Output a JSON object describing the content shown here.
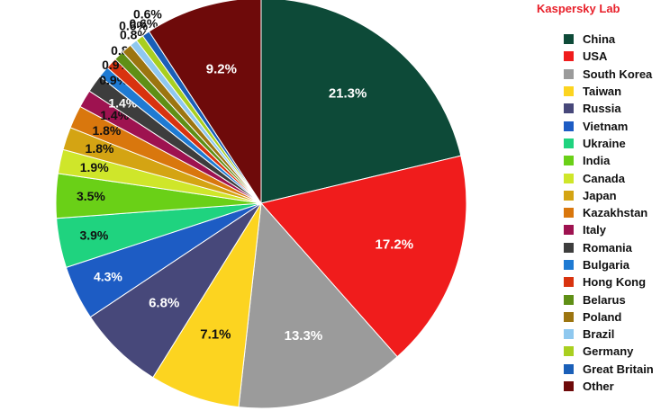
{
  "brand": "Kaspersky Lab",
  "chart_data": {
    "type": "pie",
    "title": "",
    "slices": [
      {
        "label": "China",
        "value": 21.3,
        "color": "#0d4a38",
        "label_text": "21.3%",
        "label_color": "#ffffff"
      },
      {
        "label": "USA",
        "value": 17.2,
        "color": "#f01c1c",
        "label_text": "17.2%",
        "label_color": "#ffffff"
      },
      {
        "label": "South Korea",
        "value": 13.3,
        "color": "#9b9b9b",
        "label_text": "13.3%",
        "label_color": "#ffffff"
      },
      {
        "label": "Taiwan",
        "value": 7.1,
        "color": "#fcd420",
        "label_text": "7.1%",
        "label_color": "#111111"
      },
      {
        "label": "Russia",
        "value": 6.8,
        "color": "#47487a",
        "label_text": "6.8%",
        "label_color": "#ffffff"
      },
      {
        "label": "Vietnam",
        "value": 4.3,
        "color": "#1d5cc4",
        "label_text": "4.3%",
        "label_color": "#ffffff"
      },
      {
        "label": "Ukraine",
        "value": 3.9,
        "color": "#1fd37f",
        "label_text": "3.9%",
        "label_color": "#111111"
      },
      {
        "label": "India",
        "value": 3.5,
        "color": "#6ad017",
        "label_text": "3.5%",
        "label_color": "#111111"
      },
      {
        "label": "Canada",
        "value": 1.9,
        "color": "#cfe62a",
        "label_text": "1.9%",
        "label_color": "#111111"
      },
      {
        "label": "Japan",
        "value": 1.8,
        "color": "#d4a413",
        "label_text": "1.8%",
        "label_color": "#111111"
      },
      {
        "label": "Kazakhstan",
        "value": 1.8,
        "color": "#d9770d",
        "label_text": "1.8%",
        "label_color": "#111111"
      },
      {
        "label": "Italy",
        "value": 1.4,
        "color": "#9e1250",
        "label_text": "1.4%",
        "label_color": "#111111"
      },
      {
        "label": "Romania",
        "value": 1.4,
        "color": "#3d3d3d",
        "label_text": "1.4%",
        "label_color": "#ffffff"
      },
      {
        "label": "Bulgaria",
        "value": 0.9,
        "color": "#1e7ad3",
        "label_text": "0.9%",
        "label_color": "#111111"
      },
      {
        "label": "Hong Kong",
        "value": 0.9,
        "color": "#d8330f",
        "label_text": "0.9%",
        "label_color": "#111111"
      },
      {
        "label": "Belarus",
        "value": 0.8,
        "color": "#5f8f16",
        "label_text": "0.8%",
        "label_color": "#111111"
      },
      {
        "label": "Poland",
        "value": 0.8,
        "color": "#9c7510",
        "label_text": "0.8%",
        "label_color": "#111111"
      },
      {
        "label": "Brazil",
        "value": 0.6,
        "color": "#8fc8ef",
        "label_text": "0.6%",
        "label_color": "#111111"
      },
      {
        "label": "Germany",
        "value": 0.6,
        "color": "#a9cf20",
        "label_text": "0.6%",
        "label_color": "#111111"
      },
      {
        "label": "Great Britain",
        "value": 0.6,
        "color": "#1a5fb8",
        "label_text": "0.6%",
        "label_color": "#111111"
      },
      {
        "label": "Other",
        "value": 9.2,
        "color": "#6e0a0a",
        "label_text": "9.2%",
        "label_color": "#ffffff"
      }
    ],
    "legend_position": "right"
  }
}
